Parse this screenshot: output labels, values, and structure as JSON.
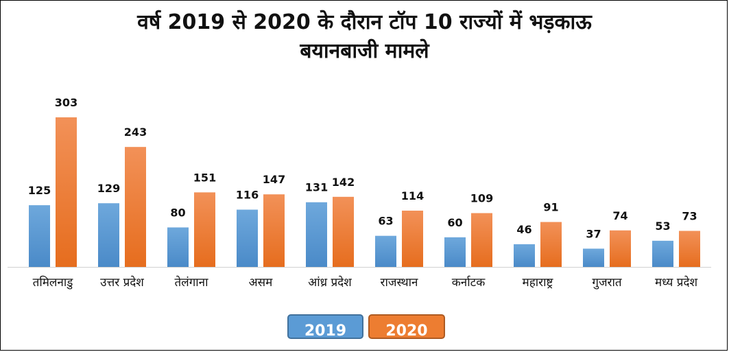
{
  "title_line1": "वर्ष 2019 से 2020 के दौरान टॉप 10 राज्यों में भड़काऊ",
  "title_line2": "बयानबाजी मामले",
  "colors": {
    "series_2019": "#5b9bd5",
    "series_2020": "#ed7d31"
  },
  "chart_data": {
    "type": "bar",
    "title": "वर्ष 2019 से 2020 के दौरान टॉप 10 राज्यों में भड़काऊ बयानबाजी मामले",
    "categories": [
      "तमिलनाडु",
      "उत्तर प्रदेश",
      "तेलंगाना",
      "असम",
      "आंध्र प्रदेश",
      "राजस्थान",
      "कर्नाटक",
      "महाराष्ट्र",
      "गुजरात",
      "मध्य प्रदेश"
    ],
    "series": [
      {
        "name": "2019",
        "values": [
          125,
          129,
          80,
          116,
          131,
          63,
          60,
          46,
          37,
          53
        ]
      },
      {
        "name": "2020",
        "values": [
          303,
          243,
          151,
          147,
          142,
          114,
          109,
          91,
          74,
          73
        ]
      }
    ],
    "ylim": [
      0,
      330
    ],
    "grid": false,
    "legend": "bottom",
    "data_labels": true
  }
}
